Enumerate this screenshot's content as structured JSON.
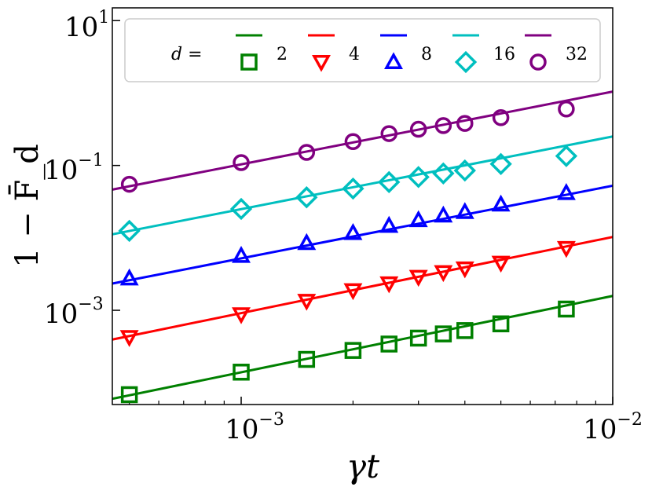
{
  "chart_data": {
    "type": "scatter",
    "title": "",
    "xlabel": "γt",
    "ylabel": "1 − F̄_d",
    "xscale": "log",
    "yscale": "log",
    "xlim": [
      0.00045,
      0.01
    ],
    "ylim": [
      5e-05,
      15
    ],
    "grid": false,
    "legend_position": "top",
    "legend_prefix": "d =",
    "x_ticks": [
      {
        "base": "10",
        "exp": "−3",
        "value": 0.001
      },
      {
        "base": "10",
        "exp": "−2",
        "value": 0.01
      }
    ],
    "y_ticks": [
      {
        "base": "10",
        "exp": "−3",
        "value": 0.001
      },
      {
        "base": "10",
        "exp": "−1",
        "value": 0.1
      },
      {
        "base": "10",
        "exp": "1",
        "value": 10
      }
    ],
    "series": [
      {
        "name": "2",
        "color": "#008000",
        "marker": "square",
        "x": [
          0.0005,
          0.001,
          0.0015,
          0.002,
          0.0025,
          0.003,
          0.0035,
          0.004,
          0.005,
          0.0075
        ],
        "y": [
          6.84e-05,
          0.00014,
          0.00021,
          0.000279,
          0.000342,
          0.000413,
          0.000472,
          0.000525,
          0.00065,
          0.00104
        ],
        "fit": {
          "x": [
            0.00045,
            0.01
          ],
          "y": [
            6e-05,
            0.00158
          ]
        }
      },
      {
        "name": "4",
        "color": "#ff0000",
        "marker": "triangle-down",
        "x": [
          0.0005,
          0.001,
          0.0015,
          0.002,
          0.0025,
          0.003,
          0.0035,
          0.004,
          0.005,
          0.0075
        ],
        "y": [
          0.000426,
          0.000879,
          0.00135,
          0.00189,
          0.00235,
          0.00289,
          0.00336,
          0.00378,
          0.00453,
          0.00724
        ],
        "fit": {
          "x": [
            0.00045,
            0.01
          ],
          "y": [
            0.000395,
            0.0103
          ]
        }
      },
      {
        "name": "8",
        "color": "#0000ff",
        "marker": "triangle-up",
        "x": [
          0.0005,
          0.001,
          0.0015,
          0.002,
          0.0025,
          0.003,
          0.0035,
          0.004,
          0.005,
          0.0075
        ],
        "y": [
          0.00276,
          0.00566,
          0.00851,
          0.0117,
          0.0147,
          0.0176,
          0.0204,
          0.0228,
          0.0289,
          0.0417
        ],
        "fit": {
          "x": [
            0.00045,
            0.01
          ],
          "y": [
            0.00234,
            0.0525
          ]
        }
      },
      {
        "name": "16",
        "color": "#00bfbf",
        "marker": "diamond",
        "x": [
          0.0005,
          0.001,
          0.0015,
          0.002,
          0.0025,
          0.003,
          0.0035,
          0.004,
          0.005,
          0.0075
        ],
        "y": [
          0.0125,
          0.0251,
          0.0363,
          0.0479,
          0.0589,
          0.0692,
          0.0776,
          0.0851,
          0.1047,
          0.1349
        ],
        "fit": {
          "x": [
            0.00045,
            0.01
          ],
          "y": [
            0.0112,
            0.2512
          ]
        }
      },
      {
        "name": "32",
        "color": "#800080",
        "marker": "circle",
        "x": [
          0.0005,
          0.001,
          0.0015,
          0.002,
          0.0025,
          0.003,
          0.0035,
          0.004,
          0.005,
          0.0075
        ],
        "y": [
          0.055,
          0.1096,
          0.1514,
          0.2138,
          0.2754,
          0.3162,
          0.3548,
          0.3802,
          0.4571,
          0.6026
        ],
        "fit": {
          "x": [
            0.00045,
            0.01
          ],
          "y": [
            0.0464,
            1.047
          ]
        }
      }
    ]
  }
}
